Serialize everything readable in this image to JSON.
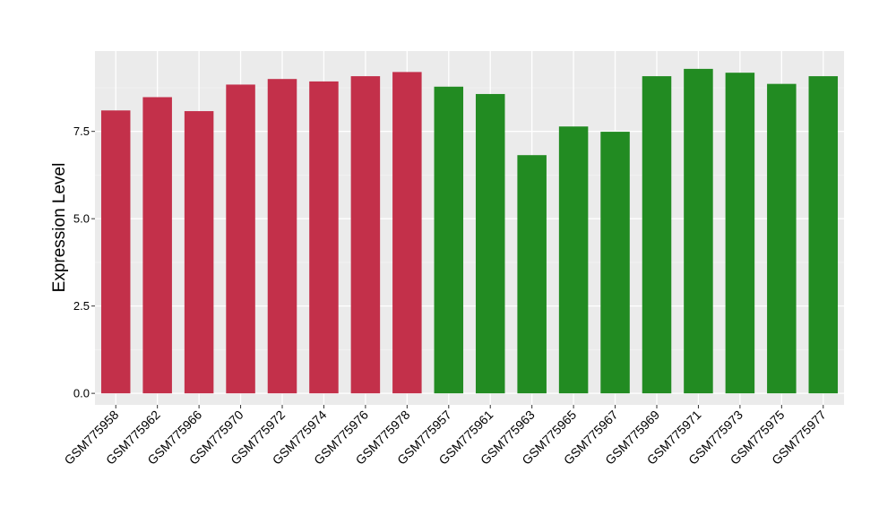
{
  "chart_data": {
    "type": "bar",
    "title": "",
    "xlabel": "",
    "ylabel": "Expression Level",
    "ylim": [
      -0.33,
      9.8
    ],
    "yticks": [
      0.0,
      2.5,
      5.0,
      7.5
    ],
    "ytick_labels": [
      "0.0",
      "2.5",
      "5.0",
      "7.5"
    ],
    "grid": true,
    "legend": "none",
    "colors": {
      "group_1": "#C3304A",
      "group_2": "#228B22",
      "panel_background": "#EBEBEB",
      "grid_major": "#FFFFFF",
      "grid_minor": "#F5F5F5"
    },
    "categories": [
      "GSM775958",
      "GSM775962",
      "GSM775966",
      "GSM775970",
      "GSM775972",
      "GSM775974",
      "GSM775976",
      "GSM775978",
      "GSM775957",
      "GSM775961",
      "GSM775963",
      "GSM775965",
      "GSM775967",
      "GSM775969",
      "GSM775971",
      "GSM775973",
      "GSM775975",
      "GSM775977"
    ],
    "values": [
      8.1,
      8.48,
      8.08,
      8.84,
      9.0,
      8.93,
      9.08,
      9.2,
      8.78,
      8.57,
      6.82,
      7.64,
      7.49,
      9.08,
      9.29,
      9.18,
      8.86,
      9.08
    ],
    "bar_groups": [
      1,
      1,
      1,
      1,
      1,
      1,
      1,
      1,
      2,
      2,
      2,
      2,
      2,
      2,
      2,
      2,
      2,
      2
    ]
  }
}
